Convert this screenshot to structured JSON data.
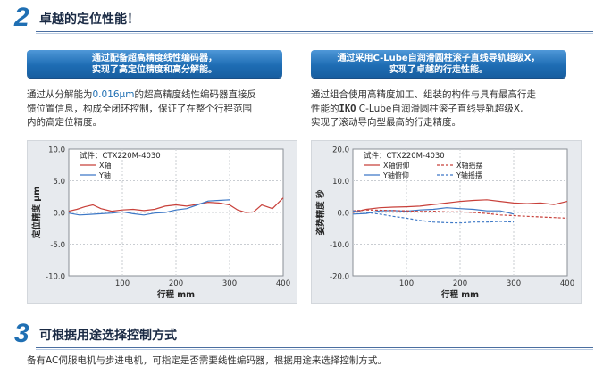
{
  "section2": {
    "number": "2",
    "title": "卓越的定位性能！",
    "left": {
      "banner": [
        "通过配备超高精度线性编码器，",
        "实现了高定位精度和高分解能。"
      ],
      "desc_line1_pre": "通过从分解能为",
      "desc_line1_value": "0.016μm",
      "desc_line1_post": "的超高精度线性编码器直接反",
      "desc_line2": "馈位置信息，构成全闭环控制，保证了在整个行程范围",
      "desc_line3": "内的高定位精度。"
    },
    "right": {
      "banner": [
        "通过采用C-Lube自润滑圆柱滚子直线导轨超级X，",
        "实现了卓越的行走性能。"
      ],
      "desc_line1": "通过组合使用高精度加工、组装的构件与具有最高行走",
      "desc_line2_pre": "性能的",
      "desc_line2_brand": "IKO",
      "desc_line2_post": " C-Lube自润滑圆柱滚子直线导轨超级X,",
      "desc_line3": "实现了滚动导向型最高的行走精度。"
    }
  },
  "section3": {
    "number": "3",
    "title": "可根据用途选择控制方式",
    "text": "备有AC伺服电机与步进电机，可指定是否需要线性编码器，根据用途来选择控制方式。"
  },
  "chart_data": [
    {
      "type": "line",
      "test_label": "试件：CTX220M-4030",
      "xlabel": "行程  mm",
      "ylabel": "定位精度  μm",
      "xlim": [
        0,
        400
      ],
      "ylim": [
        -10,
        10
      ],
      "xticks": [
        "100",
        "200",
        "300",
        "400"
      ],
      "yticks": [
        "10.0",
        "5.0",
        "0.0",
        "-5.0",
        "-10.0"
      ],
      "grid": true,
      "series": [
        {
          "name": "X轴",
          "color": "#c8403a",
          "dash": "",
          "x": [
            0,
            15,
            30,
            45,
            60,
            80,
            100,
            120,
            140,
            160,
            180,
            200,
            220,
            240,
            260,
            280,
            300,
            315,
            330,
            345,
            360,
            380,
            400
          ],
          "y": [
            0.2,
            0.5,
            0.9,
            1.2,
            0.6,
            0.2,
            0.4,
            0.5,
            0.3,
            0.5,
            1.0,
            1.2,
            1.0,
            1.3,
            1.6,
            1.5,
            1.2,
            0.4,
            0.0,
            0.1,
            1.2,
            0.6,
            2.3
          ]
        },
        {
          "name": "Y轴",
          "color": "#3d78c6",
          "dash": "",
          "x": [
            0,
            20,
            40,
            60,
            80,
            100,
            120,
            140,
            160,
            180,
            200,
            220,
            240,
            260,
            280,
            300
          ],
          "y": [
            -0.1,
            -0.4,
            -0.3,
            -0.2,
            -0.1,
            0.1,
            -0.2,
            -0.4,
            -0.1,
            0.0,
            0.4,
            0.6,
            1.2,
            1.8,
            1.9,
            2.0
          ]
        }
      ]
    },
    {
      "type": "line",
      "test_label": "试件：CTX220M-4030",
      "xlabel": "行程  mm",
      "ylabel": "姿势精度  秒",
      "xlim": [
        0,
        400
      ],
      "ylim": [
        -20,
        20
      ],
      "xticks": [
        "100",
        "200",
        "300",
        "400"
      ],
      "yticks": [
        "20.0",
        "10.0",
        "0.0",
        "-10.0",
        "-20.0"
      ],
      "grid": true,
      "series": [
        {
          "name": "X轴俯仰",
          "color": "#c8403a",
          "dash": "",
          "x": [
            0,
            25,
            50,
            75,
            100,
            125,
            150,
            175,
            200,
            225,
            250,
            275,
            300,
            325,
            350,
            375,
            400
          ],
          "y": [
            0.0,
            1.0,
            1.5,
            1.7,
            1.8,
            2.0,
            2.5,
            3.0,
            3.5,
            3.8,
            4.0,
            3.5,
            3.0,
            2.8,
            3.0,
            2.5,
            3.5
          ]
        },
        {
          "name": "Y轴俯仰",
          "color": "#3d78c6",
          "dash": "",
          "x": [
            0,
            25,
            50,
            75,
            100,
            125,
            150,
            175,
            200,
            225,
            250,
            275,
            300
          ],
          "y": [
            -0.5,
            -0.3,
            0.5,
            0.6,
            0.4,
            0.8,
            1.0,
            1.5,
            1.2,
            1.0,
            0.5,
            0.5,
            -0.5
          ]
        },
        {
          "name": "X轴摇摆",
          "color": "#c8403a",
          "dash": "3,2",
          "x": [
            0,
            25,
            50,
            75,
            100,
            125,
            150,
            175,
            200,
            225,
            250,
            275,
            300,
            325,
            350,
            375,
            400
          ],
          "y": [
            0.5,
            0.8,
            0.7,
            0.6,
            0.5,
            0.3,
            0.4,
            0.2,
            0.2,
            0.0,
            -0.3,
            -0.8,
            -1.0,
            -1.2,
            -1.4,
            -1.6,
            -1.8
          ]
        },
        {
          "name": "Y轴摇摆",
          "color": "#3d78c6",
          "dash": "3,2",
          "x": [
            0,
            25,
            50,
            75,
            100,
            125,
            150,
            175,
            200,
            225,
            250,
            275,
            300
          ],
          "y": [
            0.5,
            0.0,
            -0.5,
            -1.2,
            -1.8,
            -2.5,
            -3.0,
            -3.2,
            -3.3,
            -3.0,
            -3.0,
            -2.8,
            -3.0
          ]
        }
      ]
    }
  ]
}
